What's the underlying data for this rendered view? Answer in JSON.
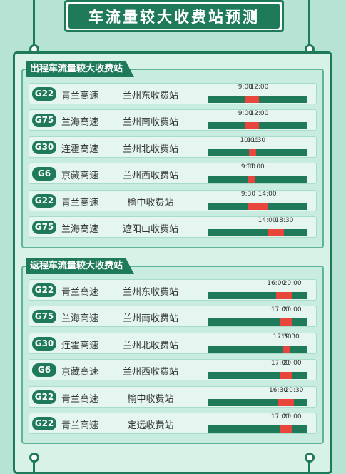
{
  "title": "车流量较大收费站预测",
  "outbound": {
    "heading": "出程车流量较大收费站",
    "rows": [
      {
        "road": "G22",
        "highway": "青兰高速",
        "station": "兰州东收费站",
        "start": "9:00",
        "end": "12:00",
        "span": [
          0.37,
          0.51
        ]
      },
      {
        "road": "G75",
        "highway": "兰海高速",
        "station": "兰州南收费站",
        "start": "9:00",
        "end": "12:00",
        "span": [
          0.37,
          0.51
        ]
      },
      {
        "road": "G30",
        "highway": "连霍高速",
        "station": "兰州北收费站",
        "start": "10:00",
        "end": "11:30",
        "span": [
          0.41,
          0.48
        ]
      },
      {
        "road": "G6",
        "highway": "京藏高速",
        "station": "兰州西收费站",
        "start": "9:30",
        "end": "11:00",
        "span": [
          0.4,
          0.47
        ]
      },
      {
        "road": "G22",
        "highway": "青兰高速",
        "station": "榆中收费站",
        "start": "9:30",
        "end": "14:00",
        "span": [
          0.4,
          0.59
        ]
      },
      {
        "road": "G75",
        "highway": "兰海高速",
        "station": "遮阳山收费站",
        "start": "14:00",
        "end": "18:30",
        "span": [
          0.59,
          0.76
        ]
      }
    ]
  },
  "inbound": {
    "heading": "返程车流量较大收费站",
    "rows": [
      {
        "road": "G22",
        "highway": "青兰高速",
        "station": "兰州东收费站",
        "start": "16:00",
        "end": "20:00",
        "span": [
          0.68,
          0.84
        ]
      },
      {
        "road": "G75",
        "highway": "兰海高速",
        "station": "兰州南收费站",
        "start": "17:00",
        "end": "20:00",
        "span": [
          0.72,
          0.84
        ]
      },
      {
        "road": "G30",
        "highway": "连霍高速",
        "station": "兰州北收费站",
        "start": "17:30",
        "end": "19:30",
        "span": [
          0.74,
          0.82
        ]
      },
      {
        "road": "G6",
        "highway": "京藏高速",
        "station": "兰州西收费站",
        "start": "17:00",
        "end": "20:00",
        "span": [
          0.72,
          0.84
        ]
      },
      {
        "road": "G22",
        "highway": "青兰高速",
        "station": "榆中收费站",
        "start": "16:30",
        "end": "20:30",
        "span": [
          0.7,
          0.86
        ]
      },
      {
        "road": "G22",
        "highway": "青兰高速",
        "station": "定远收费站",
        "start": "17:00",
        "end": "20:00",
        "span": [
          0.72,
          0.84
        ]
      }
    ]
  },
  "colors": {
    "accent": "#1f7a5a",
    "highlight": "#e8453c",
    "background": "#b7e3d4"
  }
}
